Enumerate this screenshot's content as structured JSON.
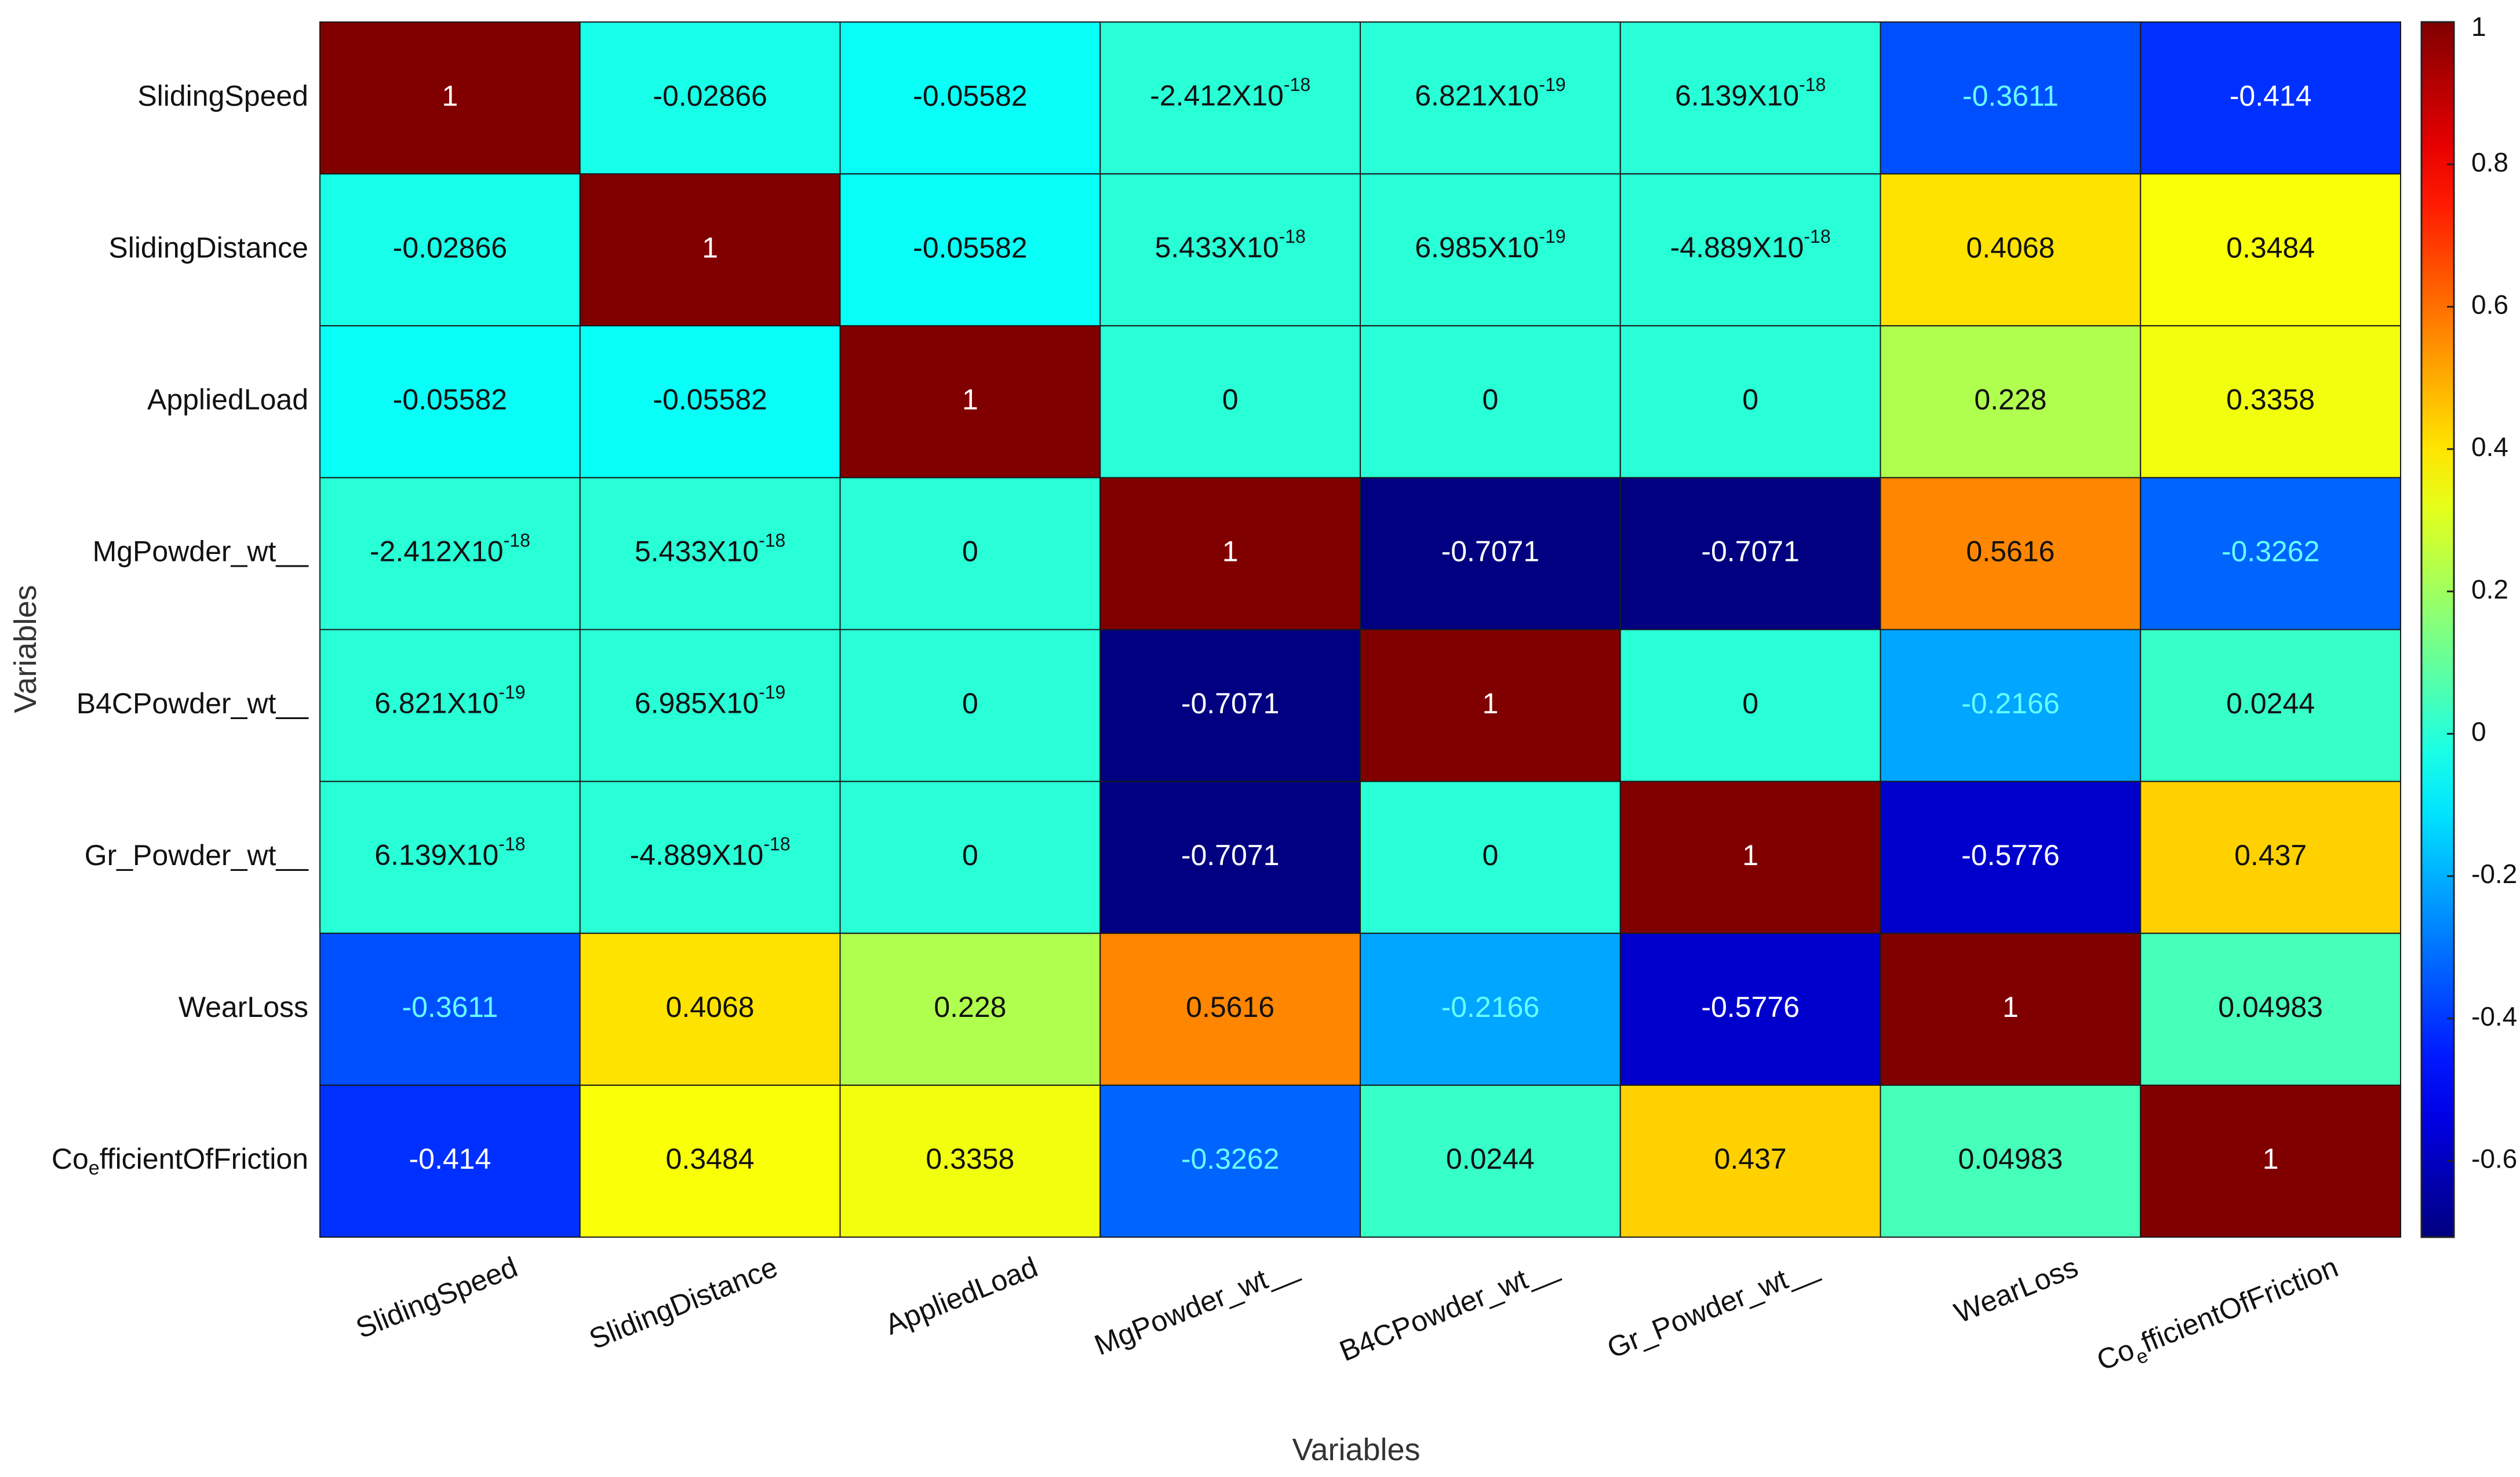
{
  "chart_data": {
    "type": "heatmap",
    "title": "",
    "xlabel": "Variables",
    "ylabel": "Variables",
    "row_labels": [
      "SlidingSpeed",
      "SlidingDistance",
      "AppliedLoad",
      "MgPowder_wt__",
      "B4CPowder_wt__",
      "Gr_Powder_wt__",
      "WearLoss",
      "Co_efficientOfFriction"
    ],
    "col_labels": [
      "SlidingSpeed",
      "SlidingDistance",
      "AppliedLoad",
      "MgPowder_wt__",
      "B4CPowder_wt__",
      "Gr_Powder_wt__",
      "WearLoss",
      "Co_efficientOfFriction"
    ],
    "coefficient_label": {
      "before": "Co",
      "subscript": "e",
      "after": "fficientOfFriction"
    },
    "values": [
      [
        1,
        -0.02866,
        -0.05582,
        -2.412e-18,
        6.821e-19,
        6.139e-18,
        -0.3611,
        -0.414
      ],
      [
        -0.02866,
        1,
        -0.05582,
        5.433e-18,
        6.985e-19,
        -4.889e-18,
        0.4068,
        0.3484
      ],
      [
        -0.05582,
        -0.05582,
        1,
        0,
        0,
        0,
        0.228,
        0.3358
      ],
      [
        -2.412e-18,
        5.433e-18,
        0,
        1,
        -0.7071,
        -0.7071,
        0.5616,
        -0.3262
      ],
      [
        6.821e-19,
        6.985e-19,
        0,
        -0.7071,
        1,
        0,
        -0.2166,
        0.0244
      ],
      [
        6.139e-18,
        -4.889e-18,
        0,
        -0.7071,
        0,
        1,
        -0.5776,
        0.437
      ],
      [
        -0.3611,
        0.4068,
        0.228,
        0.5616,
        -0.2166,
        -0.5776,
        1,
        0.04983
      ],
      [
        -0.414,
        0.3484,
        0.3358,
        -0.3262,
        0.0244,
        0.437,
        0.04983,
        1
      ]
    ],
    "cell_text": [
      [
        {
          "t": "1"
        },
        {
          "t": "-0.02866"
        },
        {
          "t": "-0.05582"
        },
        {
          "m": "-2.412X10",
          "e": "-18"
        },
        {
          "m": "6.821X10",
          "e": "-19"
        },
        {
          "m": "6.139X10",
          "e": "-18"
        },
        {
          "t": "-0.3611"
        },
        {
          "t": "-0.414"
        }
      ],
      [
        {
          "t": "-0.02866"
        },
        {
          "t": "1"
        },
        {
          "t": "-0.05582"
        },
        {
          "m": "5.433X10",
          "e": "-18"
        },
        {
          "m": "6.985X10",
          "e": "-19"
        },
        {
          "m": "-4.889X10",
          "e": "-18"
        },
        {
          "t": "0.4068"
        },
        {
          "t": "0.3484"
        }
      ],
      [
        {
          "t": "-0.05582"
        },
        {
          "t": "-0.05582"
        },
        {
          "t": "1"
        },
        {
          "t": "0"
        },
        {
          "t": "0"
        },
        {
          "t": "0"
        },
        {
          "t": "0.228"
        },
        {
          "t": "0.3358"
        }
      ],
      [
        {
          "m": "-2.412X10",
          "e": "-18"
        },
        {
          "m": "5.433X10",
          "e": "-18"
        },
        {
          "t": "0"
        },
        {
          "t": "1"
        },
        {
          "t": "-0.7071"
        },
        {
          "t": "-0.7071"
        },
        {
          "t": "0.5616"
        },
        {
          "t": "-0.3262"
        }
      ],
      [
        {
          "m": "6.821X10",
          "e": "-19"
        },
        {
          "m": "6.985X10",
          "e": "-19"
        },
        {
          "t": "0"
        },
        {
          "t": "-0.7071"
        },
        {
          "t": "1"
        },
        {
          "t": "0"
        },
        {
          "t": "-0.2166"
        },
        {
          "t": "0.0244"
        }
      ],
      [
        {
          "m": "6.139X10",
          "e": "-18"
        },
        {
          "m": "-4.889X10",
          "e": "-18"
        },
        {
          "t": "0"
        },
        {
          "t": "-0.7071"
        },
        {
          "t": "0"
        },
        {
          "t": "1"
        },
        {
          "t": "-0.5776"
        },
        {
          "t": "0.437"
        }
      ],
      [
        {
          "t": "-0.3611"
        },
        {
          "t": "0.4068"
        },
        {
          "t": "0.228"
        },
        {
          "t": "0.5616"
        },
        {
          "t": "-0.2166"
        },
        {
          "t": "-0.5776"
        },
        {
          "t": "1"
        },
        {
          "t": "0.04983"
        }
      ],
      [
        {
          "t": "-0.414"
        },
        {
          "t": "0.3484"
        },
        {
          "t": "0.3358"
        },
        {
          "t": "-0.3262"
        },
        {
          "t": "0.0244"
        },
        {
          "t": "0.437"
        },
        {
          "t": "0.04983"
        },
        {
          "t": "1"
        }
      ]
    ],
    "colorbar": {
      "colormap": "jet",
      "min": -0.7071,
      "max": 1,
      "ticks": [
        1,
        0.8,
        0.6,
        0.4,
        0.2,
        0,
        -0.2,
        -0.4,
        -0.6
      ],
      "tick_labels": [
        "1",
        "0.8",
        "0.6",
        "0.4",
        "0.2",
        "0",
        "-0.2",
        "-0.4",
        "-0.6"
      ]
    },
    "grid": true,
    "legend": "colorbar-right"
  }
}
